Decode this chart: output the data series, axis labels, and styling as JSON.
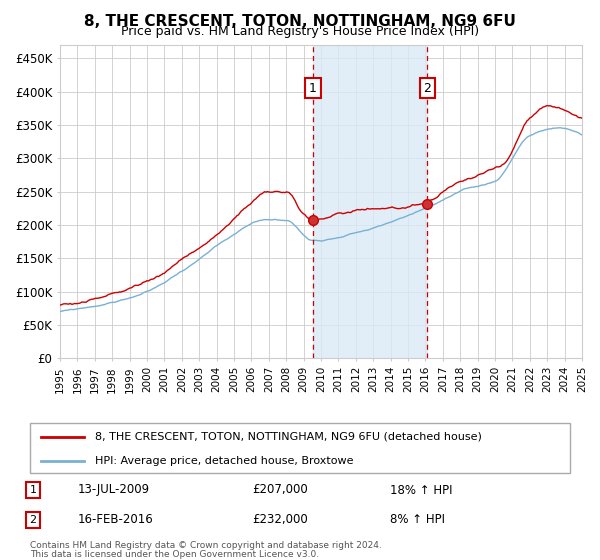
{
  "title": "8, THE CRESCENT, TOTON, NOTTINGHAM, NG9 6FU",
  "subtitle": "Price paid vs. HM Land Registry's House Price Index (HPI)",
  "ylim": [
    0,
    470000
  ],
  "yticks": [
    0,
    50000,
    100000,
    150000,
    200000,
    250000,
    300000,
    350000,
    400000,
    450000
  ],
  "ytick_labels": [
    "£0",
    "£50K",
    "£100K",
    "£150K",
    "£200K",
    "£250K",
    "£300K",
    "£350K",
    "£400K",
    "£450K"
  ],
  "x_start_year": 1995,
  "x_end_year": 2025,
  "background_color": "#ffffff",
  "grid_color": "#cccccc",
  "hpi_line_color": "#7ab0d4",
  "price_line_color": "#cc0000",
  "sale1_price": 207000,
  "sale1_hpi_pct": "18%",
  "sale2_price": 232000,
  "sale2_hpi_pct": "8%",
  "sale1_x": 2009.53,
  "sale2_x": 2016.12,
  "sale1_date": "13-JUL-2009",
  "sale2_date": "16-FEB-2016",
  "legend_line1": "8, THE CRESCENT, TOTON, NOTTINGHAM, NG9 6FU (detached house)",
  "legend_line2": "HPI: Average price, detached house, Broxtowe",
  "footnote1": "Contains HM Land Registry data © Crown copyright and database right 2024.",
  "footnote2": "This data is licensed under the Open Government Licence v3.0.",
  "shaded_region_color": "#daeaf5",
  "vline_color": "#cc0000"
}
